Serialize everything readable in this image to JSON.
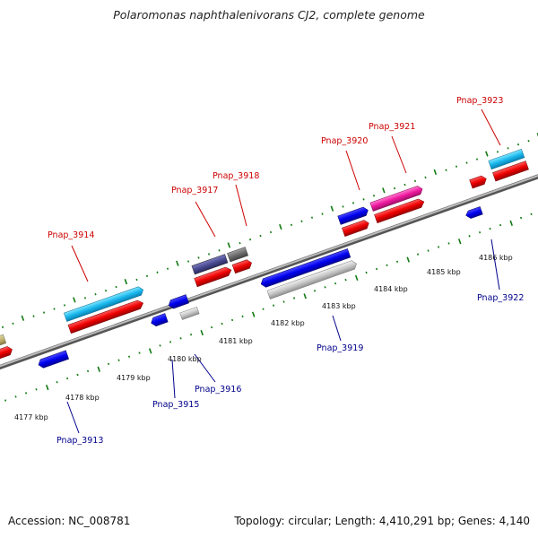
{
  "title": "Polaromonas naphthalenivorans CJ2, complete genome",
  "footer": {
    "accession": "Accession: NC_008781",
    "topology": "Topology: circular; Length: 4,410,291 bp; Genes: 4,140"
  },
  "colors": {
    "backbone": "#8c8c8c",
    "ticks": "#117a11",
    "label_top": "#cc0000",
    "label_bottom": "#00008b"
  },
  "ruler_labels": [
    "4177 kbp",
    "4178 kbp",
    "4179 kbp",
    "4180 kbp",
    "4181 kbp",
    "4182 kbp",
    "4183 kbp",
    "4184 kbp",
    "4185 kbp",
    "4186 kbp"
  ],
  "gene_labels_top": [
    "Pnap_3914",
    "Pnap_3917",
    "Pnap_3918",
    "Pnap_3920",
    "Pnap_3921",
    "Pnap_3923"
  ],
  "gene_labels_bottom": [
    "Pnap_3913",
    "Pnap_3915",
    "Pnap_3916",
    "Pnap_3919",
    "Pnap_3922"
  ]
}
